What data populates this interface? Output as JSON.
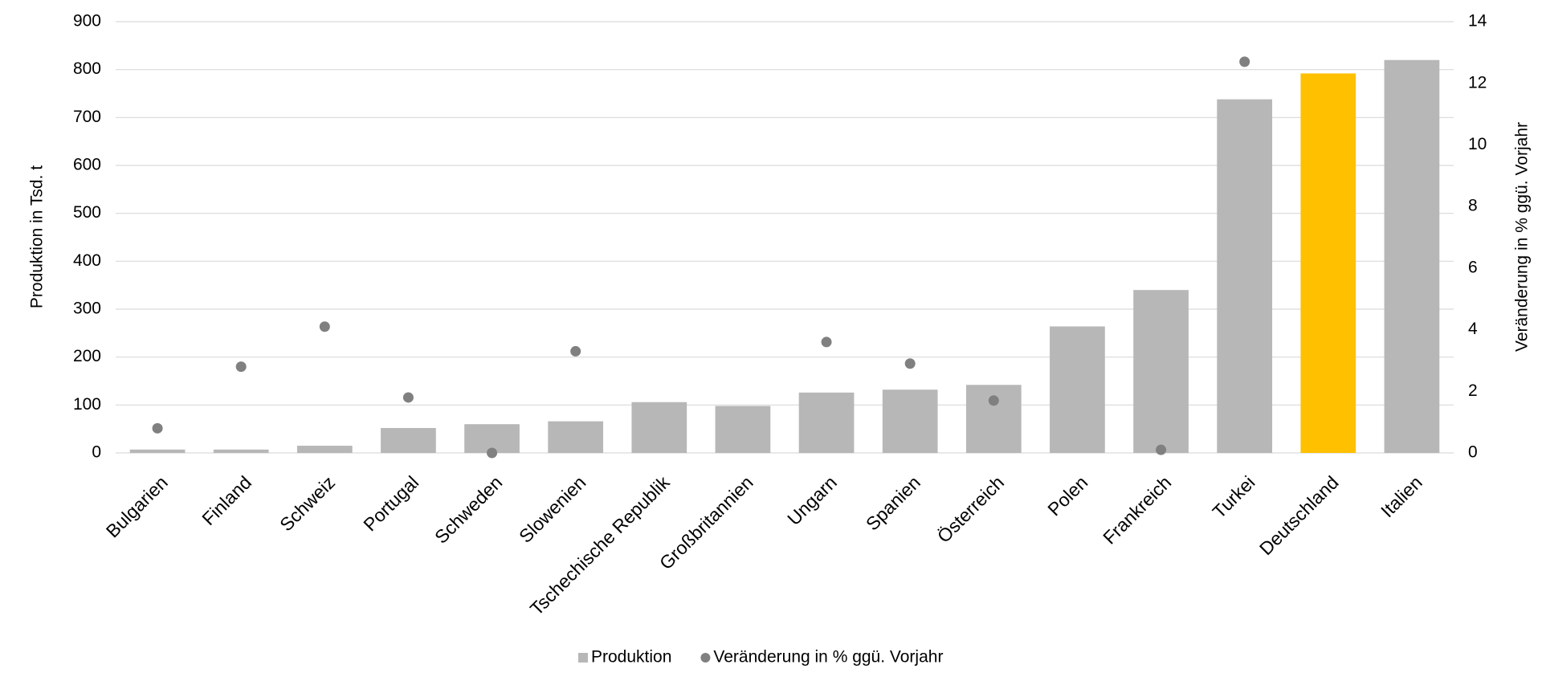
{
  "chart_data": {
    "type": "bar",
    "categories": [
      "Bulgarien",
      "Finland",
      "Schweiz",
      "Portugal",
      "Schweden",
      "Slowenien",
      "Tschechische Republik",
      "Großbritannien",
      "Ungarn",
      "Spanien",
      "Österreich",
      "Polen",
      "Frankreich",
      "Turkei",
      "Deutschland",
      "Italien"
    ],
    "series": [
      {
        "name": "Produktion",
        "type": "bar",
        "color": "#b7b7b7",
        "colors": [
          "#b7b7b7",
          "#b7b7b7",
          "#b7b7b7",
          "#b7b7b7",
          "#b7b7b7",
          "#b7b7b7",
          "#b7b7b7",
          "#b7b7b7",
          "#b7b7b7",
          "#b7b7b7",
          "#b7b7b7",
          "#b7b7b7",
          "#b7b7b7",
          "#b7b7b7",
          "#ffc000",
          "#b7b7b7"
        ],
        "values": [
          7,
          7,
          15,
          52,
          60,
          66,
          106,
          98,
          126,
          132,
          142,
          264,
          340,
          738,
          792,
          820
        ]
      },
      {
        "name": "Veränderung in % ggü. Vorjahr",
        "type": "scatter",
        "axis": "y2",
        "color": "#808080",
        "values": [
          0.8,
          2.8,
          4.1,
          1.8,
          0.0,
          3.3,
          null,
          null,
          3.6,
          2.9,
          1.7,
          null,
          0.1,
          12.7,
          null,
          null
        ]
      }
    ],
    "y_label": "Produktion in Tsd. t",
    "y2_label": "Veränderung in % ggü. Vorjahr",
    "ylim": [
      0,
      900
    ],
    "yticks": [
      0,
      100,
      200,
      300,
      400,
      500,
      600,
      700,
      800,
      900
    ],
    "y2lim": [
      0,
      14
    ],
    "y2ticks": [
      0,
      2,
      4,
      6,
      8,
      10,
      12,
      14
    ],
    "grid": true,
    "legend": "bottom"
  }
}
